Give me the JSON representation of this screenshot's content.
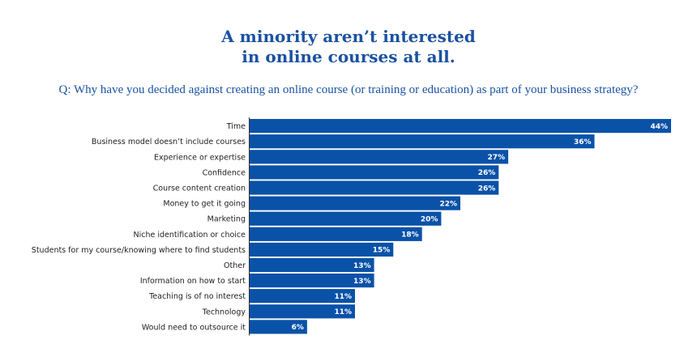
{
  "header": {
    "title_line1": "A minority aren’t interested",
    "title_line2": "in online courses at all.",
    "question": "Q: Why have you decided against creating an online course (or training or education) as part of your business strategy?"
  },
  "colors": {
    "bar": "#0a52a8",
    "title": "#1a52a0",
    "axis": "#333333"
  },
  "chart_data": {
    "type": "bar",
    "orientation": "horizontal",
    "title": "A minority aren’t interested in online courses at all.",
    "subtitle": "Q: Why have you decided against creating an online course (or training or education) as part of your business strategy?",
    "xlabel": "",
    "ylabel": "",
    "unit": "%",
    "xlim": [
      0,
      44
    ],
    "grid": false,
    "categories": [
      "Time",
      "Business model doesn’t include courses",
      "Experience or expertise",
      "Confidence",
      "Course content creation",
      "Money to get it going",
      "Marketing",
      "Niche identification or choice",
      "Students for my course/knowing where to find students",
      "Other",
      "Information on how to start",
      "Teaching is of no interest",
      "Technology",
      "Would need to outsource it"
    ],
    "values": [
      44,
      36,
      27,
      26,
      26,
      22,
      20,
      18,
      15,
      13,
      13,
      11,
      11,
      6
    ],
    "labels": [
      "44%",
      "36%",
      "27%",
      "26%",
      "26%",
      "22%",
      "20%",
      "18%",
      "15%",
      "13%",
      "13%",
      "11%",
      "11%",
      "6%"
    ]
  }
}
